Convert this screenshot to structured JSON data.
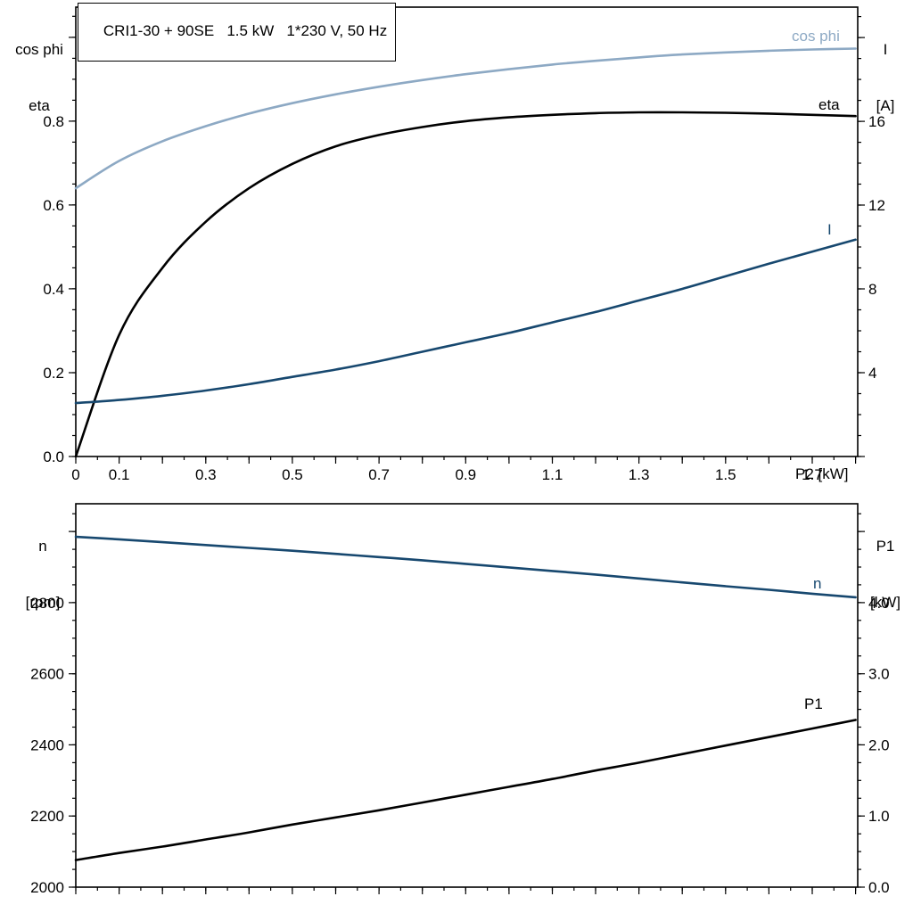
{
  "header": {
    "title": "CRI1-30 + 90SE   1.5 kW   1*230 V, 50 Hz"
  },
  "colors": {
    "background": "#ffffff",
    "axis": "#000000",
    "cos_phi_curve": "#8da9c4",
    "current_curve": "#17486f",
    "eta_curve": "#000000",
    "speed_curve": "#17486f",
    "p1_curve": "#000000"
  },
  "chart_data": [
    {
      "name": "motor-electrical-chart",
      "type": "line",
      "title": "CRI1-30 + 90SE   1.5 kW   1*230 V, 50 Hz",
      "grid": "off",
      "x_axis": {
        "label": "P2 [kW]",
        "min": 0,
        "max": 1.805,
        "major_step": 0.1,
        "minor_step": 0.05,
        "ticks": [
          [
            0,
            "0"
          ],
          [
            0.1,
            "0.1"
          ],
          [
            0.3,
            "0.3"
          ],
          [
            0.5,
            "0.5"
          ],
          [
            0.7,
            "0.7"
          ],
          [
            0.9,
            "0.9"
          ],
          [
            1.1,
            "1.1"
          ],
          [
            1.3,
            "1.3"
          ],
          [
            1.5,
            "1.5"
          ],
          [
            1.7,
            "1.7"
          ]
        ]
      },
      "y_left": {
        "title_lines": [
          "cos phi",
          "eta"
        ],
        "min": 0,
        "max": 1.072,
        "major_step": 0.2,
        "minor_step": 0.05,
        "ticks": [
          [
            0,
            "0.0"
          ],
          [
            0.2,
            "0.2"
          ],
          [
            0.4,
            "0.4"
          ],
          [
            0.6,
            "0.6"
          ],
          [
            0.8,
            "0.8"
          ]
        ]
      },
      "y_right": {
        "title_lines": [
          "I",
          "[A]"
        ],
        "min": 0,
        "max": 21.45,
        "major_step": 4,
        "minor_step": 1,
        "ticks": [
          [
            4,
            "4"
          ],
          [
            8,
            "8"
          ],
          [
            12,
            "12"
          ],
          [
            16,
            "16"
          ]
        ]
      },
      "x": [
        0,
        0.1,
        0.2,
        0.3,
        0.4,
        0.5,
        0.6,
        0.7,
        0.8,
        0.9,
        1.0,
        1.1,
        1.2,
        1.3,
        1.4,
        1.5,
        1.6,
        1.7,
        1.8
      ],
      "series": [
        {
          "name": "cos phi",
          "axis": "left",
          "color": "#8da9c4",
          "values": [
            0.64,
            0.705,
            0.752,
            0.788,
            0.818,
            0.843,
            0.864,
            0.882,
            0.898,
            0.912,
            0.924,
            0.935,
            0.944,
            0.952,
            0.959,
            0.964,
            0.968,
            0.971,
            0.973
          ]
        },
        {
          "name": "eta",
          "axis": "left",
          "color": "#000000",
          "values": [
            0,
            0.29,
            0.45,
            0.56,
            0.64,
            0.698,
            0.74,
            0.767,
            0.786,
            0.8,
            0.809,
            0.815,
            0.819,
            0.821,
            0.821,
            0.82,
            0.818,
            0.815,
            0.812
          ]
        },
        {
          "name": "I",
          "axis": "right",
          "color": "#17486f",
          "values": [
            2.55,
            2.7,
            2.9,
            3.15,
            3.45,
            3.8,
            4.15,
            4.55,
            5.0,
            5.45,
            5.9,
            6.4,
            6.9,
            7.45,
            8.0,
            8.6,
            9.2,
            9.78,
            10.35
          ]
        }
      ]
    },
    {
      "name": "speed-power-chart",
      "type": "line",
      "grid": "off",
      "x_axis": {
        "label": "",
        "min": 0,
        "max": 1.805,
        "major_step": 0.1,
        "minor_step": 0.05,
        "ticks": []
      },
      "y_left": {
        "title_lines": [
          "n",
          "[rpm]"
        ],
        "min": 2000,
        "max": 3078,
        "major_step": 200,
        "minor_step": 50,
        "ticks": [
          [
            2000,
            "2000"
          ],
          [
            2200,
            "2200"
          ],
          [
            2400,
            "2400"
          ],
          [
            2600,
            "2600"
          ],
          [
            2800,
            "2800"
          ]
        ]
      },
      "y_right": {
        "title_lines": [
          "P1",
          "[kW]"
        ],
        "min": 0,
        "max": 5.39,
        "major_step": 1,
        "minor_step": 0.25,
        "ticks": [
          [
            0,
            "0.0"
          ],
          [
            1,
            "1.0"
          ],
          [
            2,
            "2.0"
          ],
          [
            3,
            "3.0"
          ],
          [
            4,
            "4.0"
          ]
        ]
      },
      "x": [
        0,
        0.1,
        0.2,
        0.3,
        0.4,
        0.5,
        0.6,
        0.7,
        0.8,
        0.9,
        1.0,
        1.1,
        1.2,
        1.3,
        1.4,
        1.5,
        1.6,
        1.7,
        1.8
      ],
      "series": [
        {
          "name": "n",
          "axis": "left",
          "color": "#17486f",
          "values": [
            2985,
            2978,
            2970,
            2962,
            2954,
            2946,
            2937,
            2928,
            2919,
            2909,
            2899,
            2889,
            2879,
            2868,
            2857,
            2846,
            2836,
            2825,
            2815
          ]
        },
        {
          "name": "P1",
          "axis": "right",
          "color": "#000000",
          "values": [
            0.38,
            0.48,
            0.57,
            0.67,
            0.77,
            0.88,
            0.98,
            1.08,
            1.19,
            1.3,
            1.41,
            1.52,
            1.64,
            1.75,
            1.87,
            1.99,
            2.11,
            2.23,
            2.35
          ]
        }
      ]
    }
  ]
}
